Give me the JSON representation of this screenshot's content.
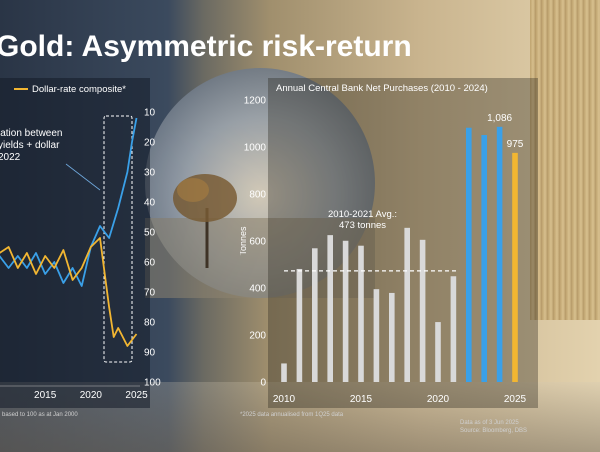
{
  "title": "Gold: Asymmetric risk-return",
  "colors": {
    "gold": "#f2b632",
    "blue": "#3aa0e8",
    "grey": "#d9d9d9"
  },
  "chart_data": [
    {
      "type": "line",
      "legend": "Dollar-rate composite*",
      "annotation": [
        "lation between",
        "yields + dollar",
        "2022"
      ],
      "x_ticks": [
        "0",
        "2015",
        "2020",
        "2025"
      ],
      "y_ticks": [
        10,
        20,
        30,
        40,
        50,
        60,
        70,
        80,
        90,
        100
      ],
      "ylim": [
        100,
        10
      ],
      "y_inverted": true,
      "footnote": "based to 100 as at Jan 2000",
      "series": [
        {
          "color": "#3aa0e8",
          "x": [
            2009,
            2010,
            2011,
            2012,
            2013,
            2014,
            2015,
            2016,
            2017,
            2018,
            2019,
            2020,
            2021,
            2022,
            2023,
            2023.5,
            2024,
            2024.5,
            2025
          ],
          "y": [
            56,
            58,
            62,
            58,
            62,
            57,
            64,
            60,
            67,
            62,
            68,
            55,
            48,
            52,
            42,
            36,
            30,
            20,
            12
          ]
        },
        {
          "color": "#f2b632",
          "x": [
            2009,
            2010,
            2011,
            2012,
            2013,
            2014,
            2015,
            2016,
            2017,
            2018,
            2019,
            2020,
            2021,
            2022,
            2022.5,
            2023,
            2024,
            2025
          ],
          "y": [
            50,
            57,
            55,
            62,
            57,
            64,
            58,
            62,
            56,
            66,
            62,
            55,
            52,
            75,
            85,
            82,
            88,
            84
          ]
        }
      ]
    },
    {
      "type": "bar",
      "title": "Annual Central Bank Net Purchases (2010 - 2024)",
      "ylabel": "Tonnes",
      "ylim": [
        0,
        1200
      ],
      "y_ticks": [
        0,
        200,
        400,
        600,
        800,
        1000,
        1200
      ],
      "x_ticks": [
        "2010",
        "2015",
        "2020",
        "2025"
      ],
      "average": {
        "value": 473,
        "label_line1": "2010-2021 Avg.:",
        "label_line2": "473 tonnes"
      },
      "bars": [
        {
          "year": 2010,
          "value": 79,
          "group": "grey"
        },
        {
          "year": 2011,
          "value": 481,
          "group": "grey"
        },
        {
          "year": 2012,
          "value": 569,
          "group": "grey"
        },
        {
          "year": 2013,
          "value": 625,
          "group": "grey"
        },
        {
          "year": 2014,
          "value": 601,
          "group": "grey"
        },
        {
          "year": 2015,
          "value": 580,
          "group": "grey"
        },
        {
          "year": 2016,
          "value": 395,
          "group": "grey"
        },
        {
          "year": 2017,
          "value": 379,
          "group": "grey"
        },
        {
          "year": 2018,
          "value": 656,
          "group": "grey"
        },
        {
          "year": 2019,
          "value": 605,
          "group": "grey"
        },
        {
          "year": 2020,
          "value": 255,
          "group": "grey"
        },
        {
          "year": 2021,
          "value": 450,
          "group": "grey"
        },
        {
          "year": 2022,
          "value": 1082,
          "group": "blue"
        },
        {
          "year": 2023,
          "value": 1051,
          "group": "blue"
        },
        {
          "year": 2024,
          "value": 1086,
          "group": "blue",
          "label": "1,086"
        },
        {
          "year": 2025,
          "value": 975,
          "group": "gold",
          "label": "975"
        }
      ],
      "footnote_left": "*2025 data annualised from 1Q25 data",
      "footnote_right_1": "Data as of 3 Jun 2025",
      "footnote_right_2": "Source: Bloomberg, DBS"
    }
  ]
}
